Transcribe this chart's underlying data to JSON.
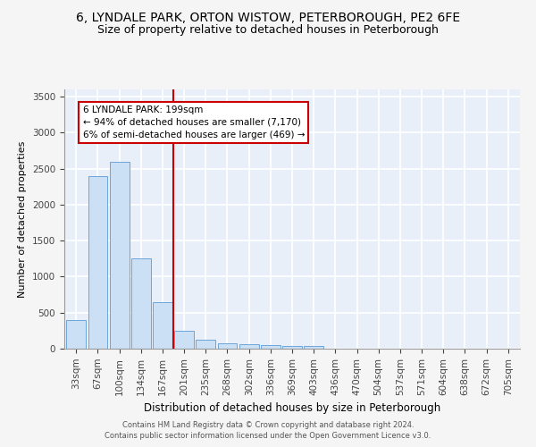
{
  "title_line1": "6, LYNDALE PARK, ORTON WISTOW, PETERBOROUGH, PE2 6FE",
  "title_line2": "Size of property relative to detached houses in Peterborough",
  "xlabel": "Distribution of detached houses by size in Peterborough",
  "ylabel": "Number of detached properties",
  "categories": [
    "33sqm",
    "67sqm",
    "100sqm",
    "134sqm",
    "167sqm",
    "201sqm",
    "235sqm",
    "268sqm",
    "302sqm",
    "336sqm",
    "369sqm",
    "403sqm",
    "436sqm",
    "470sqm",
    "504sqm",
    "537sqm",
    "571sqm",
    "604sqm",
    "638sqm",
    "672sqm",
    "705sqm"
  ],
  "values": [
    400,
    2400,
    2600,
    1250,
    650,
    250,
    120,
    75,
    60,
    50,
    40,
    35,
    5,
    0,
    0,
    0,
    0,
    0,
    0,
    0,
    0
  ],
  "bar_color": "#cce0f5",
  "bar_edge_color": "#5b9bd5",
  "vline_color": "#cc0000",
  "annotation_text": "6 LYNDALE PARK: 199sqm\n← 94% of detached houses are smaller (7,170)\n6% of semi-detached houses are larger (469) →",
  "annotation_box_color": "#ffffff",
  "annotation_box_edge": "#cc0000",
  "ylim": [
    0,
    3600
  ],
  "yticks": [
    0,
    500,
    1000,
    1500,
    2000,
    2500,
    3000,
    3500
  ],
  "footer_line1": "Contains HM Land Registry data © Crown copyright and database right 2024.",
  "footer_line2": "Contains public sector information licensed under the Open Government Licence v3.0.",
  "background_color": "#e8eff8",
  "grid_color": "#ffffff",
  "fig_bg_color": "#f5f5f5",
  "title_fontsize": 10,
  "subtitle_fontsize": 9,
  "tick_fontsize": 7.5,
  "ylabel_fontsize": 8,
  "xlabel_fontsize": 8.5
}
